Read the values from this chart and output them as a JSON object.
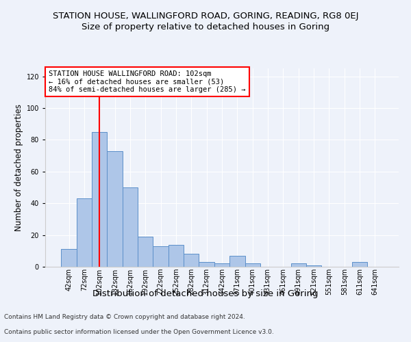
{
  "title": "STATION HOUSE, WALLINGFORD ROAD, GORING, READING, RG8 0EJ",
  "subtitle": "Size of property relative to detached houses in Goring",
  "xlabel": "Distribution of detached houses by size in Goring",
  "ylabel": "Number of detached properties",
  "categories": [
    "42sqm",
    "72sqm",
    "102sqm",
    "132sqm",
    "162sqm",
    "192sqm",
    "222sqm",
    "252sqm",
    "282sqm",
    "312sqm",
    "342sqm",
    "371sqm",
    "401sqm",
    "431sqm",
    "461sqm",
    "491sqm",
    "521sqm",
    "551sqm",
    "581sqm",
    "611sqm",
    "641sqm"
  ],
  "values": [
    11,
    43,
    85,
    73,
    50,
    19,
    13,
    14,
    8,
    3,
    2,
    7,
    2,
    0,
    0,
    2,
    1,
    0,
    0,
    3,
    0
  ],
  "bar_color": "#aec6e8",
  "bar_edge_color": "#5b8fc9",
  "highlight_line_index": 2,
  "highlight_line_color": "red",
  "annotation_title": "STATION HOUSE WALLINGFORD ROAD: 102sqm",
  "annotation_line1": "← 16% of detached houses are smaller (53)",
  "annotation_line2": "84% of semi-detached houses are larger (285) →",
  "annotation_box_color": "white",
  "annotation_box_edge_color": "red",
  "ylim": [
    0,
    125
  ],
  "yticks": [
    0,
    20,
    40,
    60,
    80,
    100,
    120
  ],
  "background_color": "#eef2fa",
  "plot_bg_color": "#eef2fa",
  "footer_line1": "Contains HM Land Registry data © Crown copyright and database right 2024.",
  "footer_line2": "Contains public sector information licensed under the Open Government Licence v3.0.",
  "title_fontsize": 9.5,
  "subtitle_fontsize": 9.5,
  "xlabel_fontsize": 9.5,
  "ylabel_fontsize": 8.5,
  "tick_fontsize": 7,
  "annotation_fontsize": 7.5,
  "footer_fontsize": 6.5
}
